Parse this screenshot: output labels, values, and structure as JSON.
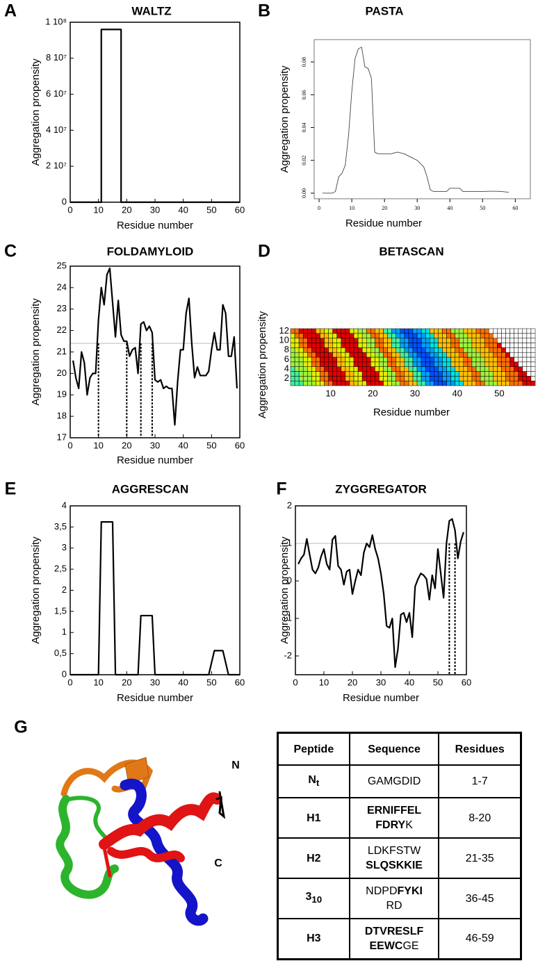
{
  "chart_data": [
    {
      "type": "line",
      "label": "A",
      "title": "WALTZ",
      "x_label": "Residue number",
      "y_label": "Aggregation propensity",
      "color": "#000000",
      "x": [
        0,
        11,
        11,
        18,
        18,
        60
      ],
      "values": [
        0,
        0,
        96000000,
        96000000,
        0,
        0
      ],
      "xlim": [
        0,
        60
      ],
      "xticks": [
        0,
        10,
        20,
        30,
        40,
        50,
        60
      ],
      "ylim": [
        0,
        100000000
      ],
      "yticks": [
        0,
        {
          "value": 20000000,
          "label": "2 10⁷"
        },
        {
          "value": 40000000,
          "label": "4 10⁷"
        },
        {
          "value": 60000000,
          "label": "6 10⁷"
        },
        {
          "value": 80000000,
          "label": "8 10⁷"
        },
        {
          "value": 100000000,
          "label": "1 10⁸"
        }
      ]
    },
    {
      "type": "line",
      "label": "B",
      "title": "PASTA",
      "x_label": "Residue number",
      "y_label": "Aggregation propensity",
      "color": "#444444",
      "style": "serif",
      "x": [
        1,
        2,
        3,
        4,
        5,
        6,
        7,
        8,
        9,
        10,
        11,
        12,
        13,
        14,
        15,
        16,
        17,
        18,
        20,
        22,
        24,
        26,
        28,
        30,
        32,
        33,
        34,
        35,
        37,
        39,
        40,
        42,
        43,
        44,
        46,
        48,
        50,
        52,
        54,
        56,
        58
      ],
      "values": [
        0,
        0,
        0,
        0,
        0.001,
        0.01,
        0.012,
        0.017,
        0.035,
        0.062,
        0.082,
        0.088,
        0.089,
        0.077,
        0.076,
        0.07,
        0.025,
        0.024,
        0.024,
        0.024,
        0.025,
        0.024,
        0.022,
        0.02,
        0.016,
        0.01,
        0.002,
        0.001,
        0.001,
        0.001,
        0.003,
        0.003,
        0.003,
        0.001,
        0.001,
        0.001,
        0.001,
        0.0012,
        0.0012,
        0.001,
        0.0005
      ],
      "xlim": [
        -1.5,
        64.6
      ],
      "xticks": [
        0,
        10,
        20,
        30,
        40,
        50,
        60
      ],
      "ylim": [
        -0.0034,
        0.0936
      ],
      "yticks": [
        {
          "value": 0,
          "label": "0.00"
        },
        {
          "value": 0.02,
          "label": "0.02"
        },
        {
          "value": 0.04,
          "label": "0.04"
        },
        {
          "value": 0.06,
          "label": "0.06"
        },
        {
          "value": 0.08,
          "label": "0.08"
        }
      ]
    },
    {
      "type": "line",
      "label": "C",
      "title": "FOLDAMYLOID",
      "x_label": "Residue number",
      "y_label": "Aggregation propensity",
      "color": "#000000",
      "x": [
        1,
        2,
        3,
        4,
        5,
        6,
        7,
        8,
        9,
        10,
        11,
        12,
        13,
        14,
        15,
        16,
        17,
        18,
        19,
        20,
        21,
        22,
        23,
        24,
        25,
        26,
        27,
        28,
        29,
        30,
        31,
        32,
        33,
        34,
        35,
        36,
        37,
        38,
        39,
        40,
        41,
        42,
        43,
        44,
        45,
        46,
        47,
        48,
        49,
        50,
        51,
        52,
        53,
        54,
        55,
        56,
        57,
        58,
        59
      ],
      "values": [
        20.6,
        19.8,
        19.3,
        21.0,
        20.5,
        19.0,
        19.8,
        20.0,
        20.0,
        22.5,
        24.0,
        23.2,
        24.6,
        24.9,
        23.3,
        21.7,
        23.4,
        21.8,
        21.5,
        21.5,
        20.8,
        21.1,
        21.2,
        20.0,
        22.3,
        22.4,
        22.0,
        22.2,
        21.9,
        19.7,
        19.6,
        19.7,
        19.3,
        19.4,
        19.3,
        19.3,
        17.6,
        19.6,
        21.1,
        21.1,
        22.8,
        23.5,
        21.4,
        19.8,
        20.3,
        19.9,
        19.9,
        19.9,
        20.1,
        21.1,
        21.9,
        21.1,
        21.1,
        23.2,
        22.8,
        20.8,
        20.8,
        21.7,
        19.3
      ],
      "threshold": 21.4,
      "highlight_x": [
        10,
        20,
        25,
        29
      ],
      "xlim": [
        0,
        60
      ],
      "xticks": [
        0,
        10,
        20,
        30,
        40,
        50,
        60
      ],
      "ylim": [
        17,
        25
      ],
      "yticks": [
        17,
        18,
        19,
        20,
        21,
        22,
        23,
        24,
        25
      ]
    },
    {
      "type": "heatmap",
      "label": "D",
      "title": "BETASCAN",
      "x_label": "Residue number",
      "y_label": "Aggregation propensity",
      "columns": 58,
      "colorscale": [
        "#0000c8",
        "#0050ff",
        "#00a0ff",
        "#00e0e0",
        "#40f0a0",
        "#a0f040",
        "#e0f000",
        "#ffc000",
        "#ff7000",
        "#e00000"
      ],
      "values": [
        [
          4,
          4,
          4,
          5,
          5,
          5,
          6,
          6,
          8,
          8,
          9,
          9,
          9,
          9,
          7,
          7,
          6,
          6,
          9,
          9,
          9,
          9,
          6,
          6,
          5,
          5,
          8,
          8,
          7,
          7,
          4,
          4,
          2,
          2,
          1,
          1,
          1,
          2,
          2,
          3,
          3,
          7,
          7,
          7,
          8,
          8,
          5,
          5,
          5,
          7,
          7,
          7,
          8,
          8,
          8,
          9,
          9,
          9
        ],
        [
          4,
          4,
          5,
          5,
          5,
          6,
          6,
          8,
          8,
          9,
          9,
          9,
          9,
          7,
          7,
          6,
          6,
          9,
          9,
          9,
          9,
          6,
          6,
          5,
          5,
          8,
          8,
          7,
          7,
          4,
          4,
          2,
          2,
          1,
          1,
          1,
          2,
          2,
          3,
          3,
          7,
          7,
          7,
          8,
          8,
          5,
          5,
          5,
          7,
          7,
          7,
          8,
          8,
          8,
          9,
          9,
          9
        ],
        [
          4,
          4,
          5,
          5,
          5,
          6,
          6,
          8,
          8,
          9,
          9,
          9,
          9,
          7,
          7,
          6,
          6,
          9,
          9,
          9,
          9,
          6,
          6,
          5,
          5,
          8,
          8,
          7,
          7,
          4,
          4,
          2,
          2,
          1,
          1,
          1,
          2,
          2,
          3,
          3,
          7,
          7,
          7,
          8,
          8,
          5,
          5,
          5,
          7,
          7,
          7,
          8,
          8,
          8,
          9,
          9
        ],
        [
          4,
          5,
          5,
          5,
          6,
          6,
          8,
          8,
          9,
          9,
          9,
          9,
          7,
          7,
          6,
          6,
          9,
          9,
          9,
          9,
          6,
          6,
          5,
          5,
          8,
          8,
          7,
          7,
          4,
          4,
          2,
          2,
          1,
          1,
          1,
          2,
          2,
          3,
          3,
          7,
          7,
          7,
          8,
          8,
          5,
          5,
          5,
          7,
          7,
          7,
          8,
          8,
          8,
          9,
          9
        ],
        [
          5,
          5,
          5,
          6,
          6,
          8,
          8,
          9,
          9,
          9,
          9,
          7,
          7,
          6,
          6,
          9,
          9,
          9,
          9,
          6,
          6,
          5,
          5,
          8,
          8,
          7,
          7,
          4,
          4,
          2,
          2,
          1,
          1,
          1,
          2,
          2,
          3,
          3,
          7,
          7,
          7,
          8,
          8,
          5,
          5,
          5,
          7,
          7,
          7,
          8,
          8,
          8,
          9,
          9
        ],
        [
          5,
          5,
          5,
          6,
          6,
          8,
          8,
          9,
          9,
          9,
          9,
          7,
          7,
          6,
          6,
          9,
          9,
          9,
          9,
          6,
          6,
          5,
          5,
          8,
          8,
          7,
          7,
          4,
          4,
          2,
          2,
          1,
          1,
          1,
          2,
          2,
          3,
          3,
          7,
          7,
          7,
          8,
          8,
          5,
          5,
          5,
          7,
          7,
          7,
          8,
          8,
          8,
          9
        ],
        [
          5,
          5,
          6,
          6,
          8,
          8,
          9,
          9,
          9,
          9,
          7,
          7,
          6,
          6,
          9,
          9,
          9,
          9,
          6,
          6,
          5,
          5,
          8,
          8,
          7,
          7,
          4,
          4,
          2,
          2,
          1,
          1,
          1,
          2,
          2,
          3,
          3,
          7,
          7,
          7,
          8,
          8,
          5,
          5,
          5,
          7,
          7,
          7,
          8,
          8,
          8,
          9
        ],
        [
          5,
          6,
          6,
          8,
          8,
          9,
          9,
          9,
          9,
          7,
          7,
          6,
          6,
          9,
          9,
          9,
          9,
          6,
          6,
          5,
          5,
          8,
          8,
          7,
          7,
          4,
          4,
          2,
          2,
          1,
          1,
          1,
          2,
          2,
          3,
          3,
          7,
          7,
          7,
          8,
          8,
          5,
          5,
          5,
          7,
          7,
          7,
          8,
          8,
          8,
          9
        ],
        [
          6,
          6,
          8,
          8,
          9,
          9,
          9,
          9,
          7,
          7,
          6,
          6,
          9,
          9,
          9,
          9,
          6,
          6,
          5,
          5,
          8,
          8,
          7,
          7,
          4,
          4,
          2,
          2,
          1,
          1,
          1,
          2,
          2,
          3,
          3,
          7,
          7,
          7,
          8,
          8,
          5,
          5,
          5,
          7,
          7,
          7,
          8,
          8,
          8,
          9
        ],
        [
          6,
          6,
          8,
          8,
          9,
          9,
          9,
          9,
          7,
          7,
          6,
          6,
          9,
          9,
          9,
          9,
          6,
          6,
          5,
          5,
          8,
          8,
          7,
          7,
          4,
          4,
          2,
          2,
          1,
          1,
          1,
          2,
          2,
          3,
          3,
          7,
          7,
          7,
          8,
          8,
          5,
          5,
          5,
          7,
          7,
          7,
          8,
          8,
          8
        ],
        [
          6,
          8,
          8,
          9,
          9,
          9,
          9,
          7,
          7,
          6,
          6,
          9,
          9,
          9,
          9,
          6,
          6,
          5,
          5,
          8,
          8,
          7,
          7,
          4,
          4,
          2,
          2,
          1,
          1,
          1,
          2,
          2,
          3,
          3,
          7,
          7,
          7,
          8,
          8,
          5,
          5,
          5,
          7,
          7,
          7,
          8,
          8,
          8
        ],
        [
          8,
          8,
          9,
          9,
          9,
          9,
          7,
          7,
          6,
          6,
          9,
          9,
          9,
          9,
          6,
          6,
          5,
          5,
          8,
          8,
          7,
          7,
          4,
          4,
          2,
          2,
          1,
          1,
          1,
          2,
          2,
          3,
          3,
          7,
          7,
          7,
          8,
          8,
          5,
          5,
          5,
          7,
          7,
          7,
          8,
          8,
          8
        ]
      ],
      "xlim": [
        0.5,
        58.5
      ],
      "xticks": [
        10,
        20,
        30,
        40,
        50
      ],
      "ylim": [
        0.5,
        12.5
      ],
      "yticks": [
        2,
        4,
        6,
        8,
        10,
        12
      ]
    },
    {
      "type": "line",
      "label": "E",
      "title": "AGGRESCAN",
      "x_label": "Residue number",
      "y_label": "Aggregation propensity",
      "color": "#000000",
      "x": [
        0,
        10,
        11,
        15,
        16,
        24,
        25,
        29,
        30,
        49,
        51,
        54,
        56,
        60
      ],
      "values": [
        0,
        0,
        3.62,
        3.62,
        0,
        0,
        1.4,
        1.4,
        0,
        0,
        0.57,
        0.57,
        0,
        0
      ],
      "xlim": [
        0,
        60
      ],
      "xticks": [
        0,
        10,
        20,
        30,
        40,
        50,
        60
      ],
      "ylim": [
        0,
        4
      ],
      "yticks": [
        0,
        {
          "value": 0.5,
          "label": "0,5"
        },
        1,
        {
          "value": 1.5,
          "label": "1,5"
        },
        2,
        {
          "value": 2.5,
          "label": "2,5"
        },
        3,
        {
          "value": 3.5,
          "label": "3,5"
        },
        4
      ]
    },
    {
      "type": "line",
      "label": "F",
      "title": "ZYGGREGATOR",
      "x_label": "Residue number",
      "y_label": "Aggregation propensity",
      "color": "#000000",
      "x": [
        1,
        2,
        3,
        4,
        5,
        6,
        7,
        8,
        9,
        10,
        11,
        12,
        13,
        14,
        15,
        16,
        17,
        18,
        19,
        20,
        21,
        22,
        23,
        24,
        25,
        26,
        27,
        28,
        29,
        30,
        31,
        32,
        33,
        34,
        35,
        36,
        37,
        38,
        39,
        40,
        41,
        42,
        43,
        44,
        45,
        46,
        47,
        48,
        49,
        50,
        51,
        52,
        53,
        54,
        55,
        56,
        57,
        58,
        59
      ],
      "values": [
        0.45,
        0.6,
        0.7,
        1.12,
        0.7,
        0.3,
        0.2,
        0.35,
        0.65,
        0.85,
        0.45,
        0.3,
        1.1,
        1.2,
        0.4,
        0.3,
        -0.1,
        0.25,
        0.3,
        -0.35,
        0,
        0.3,
        0.15,
        0.75,
        1.0,
        0.9,
        1.22,
        0.85,
        0.6,
        0.2,
        -0.35,
        -1.2,
        -1.25,
        -1.0,
        -2.3,
        -1.8,
        -0.9,
        -0.85,
        -1.1,
        -0.85,
        -1.5,
        -0.15,
        0.05,
        0.2,
        0.15,
        0.05,
        -0.5,
        0.15,
        -0.2,
        0.85,
        0.2,
        -0.45,
        1.0,
        1.6,
        1.65,
        1.35,
        0.6,
        1.05,
        1.3
      ],
      "threshold": 1,
      "highlight_x": [
        54,
        56
      ],
      "xlim": [
        0,
        60
      ],
      "xticks": [
        0,
        10,
        20,
        30,
        40,
        50,
        60
      ],
      "ylim": [
        -2.5,
        2
      ],
      "yticks": [
        -2,
        -1,
        0,
        1,
        2
      ]
    }
  ],
  "figure_g": {
    "label": "G",
    "structure_labels": [
      "N",
      "C"
    ],
    "table": {
      "header": [
        "Peptide",
        "Sequence",
        "Residues"
      ],
      "rows": [
        {
          "peptide": "N",
          "peptide_sub": "t",
          "sequence": [
            [
              {
                "text": "GAMGDID",
                "bold": false
              }
            ]
          ],
          "residues": "1-7"
        },
        {
          "peptide": "H1",
          "sequence": [
            [
              {
                "text": "ERNIFFEL",
                "bold": true
              }
            ],
            [
              {
                "text": "FDRY",
                "bold": true
              },
              {
                "text": "K",
                "bold": false
              }
            ]
          ],
          "residues": "8-20"
        },
        {
          "peptide": "H2",
          "sequence": [
            [
              {
                "text": "LDKFSTW",
                "bold": false
              }
            ],
            [
              {
                "text": "SLQSKKIE",
                "bold": true
              }
            ]
          ],
          "residues": "21-35"
        },
        {
          "peptide": "3",
          "peptide_sub": "10",
          "sequence": [
            [
              {
                "text": "NDPD",
                "bold": false
              },
              {
                "text": "FYKI",
                "bold": true
              }
            ],
            [
              {
                "text": "RD",
                "bold": false
              }
            ]
          ],
          "residues": "36-45"
        },
        {
          "peptide": "H3",
          "sequence": [
            [
              {
                "text": "DTVRESLF",
                "bold": true
              }
            ],
            [
              {
                "text": "EEWC",
                "bold": true
              },
              {
                "text": "GE",
                "bold": false
              }
            ]
          ],
          "residues": "46-59"
        }
      ]
    }
  }
}
